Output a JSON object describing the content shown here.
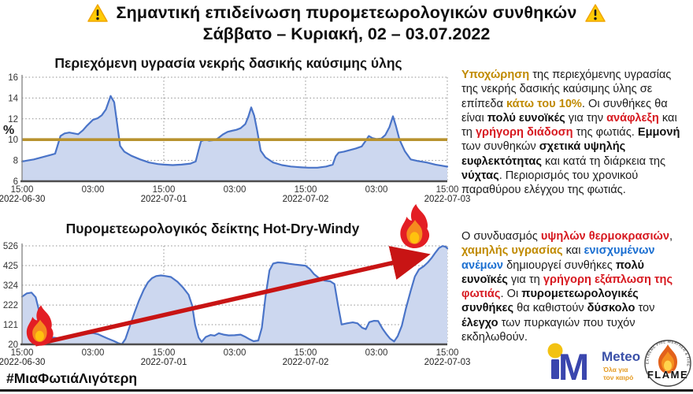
{
  "header": {
    "warning_icon": "warning-triangle",
    "title_line1": "Σημαντική επιδείνωση πυρομετεωρολογικών συνθηκών",
    "title_line2": "Σάββατο – Κυριακή, 02 – 03.07.2022"
  },
  "chart_data": [
    {
      "type": "area",
      "title": "Περιεχόμενη υγρασία νεκρής δασικής καύσιμης ύλης",
      "ylabel": "%",
      "ylim": [
        6,
        16
      ],
      "yticks": [
        6,
        8,
        10,
        12,
        14,
        16
      ],
      "xlim": [
        0,
        72
      ],
      "x_unit": "hours since 2022-06-30 15:00",
      "xticks": [
        {
          "t": 0,
          "time": "15:00",
          "date": "2022-06-30"
        },
        {
          "t": 12,
          "time": "03:00"
        },
        {
          "t": 24,
          "time": "15:00",
          "date": "2022-07-01"
        },
        {
          "t": 36,
          "time": "03:00"
        },
        {
          "t": 48,
          "time": "15:00",
          "date": "2022-07-02"
        },
        {
          "t": 60,
          "time": "03:00"
        },
        {
          "t": 72,
          "time": "15:00",
          "date": "2022-07-03"
        }
      ],
      "day_gridlines_t": [
        24,
        48,
        72
      ],
      "grid": true,
      "legend": "none",
      "threshold": {
        "value": 10,
        "color": "#b8922e"
      },
      "points": [
        [
          0,
          7.9
        ],
        [
          1,
          8.0
        ],
        [
          2,
          8.1
        ],
        [
          3,
          8.25
        ],
        [
          4,
          8.4
        ],
        [
          5,
          8.55
        ],
        [
          5.6,
          8.65
        ],
        [
          6.1,
          9.6
        ],
        [
          6.5,
          10.35
        ],
        [
          7.2,
          10.6
        ],
        [
          8,
          10.68
        ],
        [
          8.8,
          10.6
        ],
        [
          9.5,
          10.52
        ],
        [
          10.3,
          10.9
        ],
        [
          11,
          11.35
        ],
        [
          12,
          11.9
        ],
        [
          12.8,
          12.05
        ],
        [
          13.5,
          12.35
        ],
        [
          14.2,
          12.9
        ],
        [
          15,
          14.2
        ],
        [
          15.6,
          13.6
        ],
        [
          16.1,
          11.5
        ],
        [
          16.6,
          9.4
        ],
        [
          17.3,
          8.85
        ],
        [
          18.5,
          8.45
        ],
        [
          20,
          8.1
        ],
        [
          21.5,
          7.8
        ],
        [
          23,
          7.65
        ],
        [
          24,
          7.6
        ],
        [
          25.5,
          7.55
        ],
        [
          27,
          7.6
        ],
        [
          28.5,
          7.7
        ],
        [
          29.4,
          7.9
        ],
        [
          29.9,
          9.0
        ],
        [
          30.3,
          9.85
        ],
        [
          31,
          10.0
        ],
        [
          31.7,
          9.9
        ],
        [
          32.4,
          9.95
        ],
        [
          33.1,
          10.1
        ],
        [
          34,
          10.5
        ],
        [
          34.8,
          10.75
        ],
        [
          35.5,
          10.85
        ],
        [
          36.3,
          10.95
        ],
        [
          37,
          11.1
        ],
        [
          37.8,
          11.5
        ],
        [
          38.3,
          12.2
        ],
        [
          38.8,
          13.1
        ],
        [
          39.3,
          12.3
        ],
        [
          39.8,
          10.9
        ],
        [
          40.4,
          8.95
        ],
        [
          41.2,
          8.3
        ],
        [
          42.5,
          7.8
        ],
        [
          44,
          7.55
        ],
        [
          45.5,
          7.42
        ],
        [
          47,
          7.35
        ],
        [
          48.5,
          7.3
        ],
        [
          50,
          7.3
        ],
        [
          51.5,
          7.42
        ],
        [
          52.6,
          7.6
        ],
        [
          53.1,
          8.4
        ],
        [
          53.6,
          8.75
        ],
        [
          54.5,
          8.85
        ],
        [
          55.5,
          9.0
        ],
        [
          56.5,
          9.15
        ],
        [
          57.5,
          9.35
        ],
        [
          58.2,
          9.9
        ],
        [
          58.7,
          10.35
        ],
        [
          59.3,
          10.15
        ],
        [
          60,
          10.05
        ],
        [
          60.8,
          10.1
        ],
        [
          61.5,
          10.45
        ],
        [
          62.2,
          11.2
        ],
        [
          62.8,
          12.25
        ],
        [
          63.3,
          11.3
        ],
        [
          63.9,
          10.0
        ],
        [
          64.8,
          8.9
        ],
        [
          65.8,
          8.1
        ],
        [
          67,
          7.95
        ],
        [
          68.5,
          7.8
        ],
        [
          70,
          7.6
        ],
        [
          71,
          7.5
        ],
        [
          72,
          7.4
        ]
      ]
    },
    {
      "type": "area",
      "title": "Πυρομετεωρολογικός δείκτης Hot-Dry-Windy",
      "ylabel": "",
      "ylim": [
        20,
        526
      ],
      "yticks": [
        20,
        121,
        222,
        324,
        425,
        526
      ],
      "xlim": [
        0,
        72
      ],
      "x_unit": "hours since 2022-06-30 15:00",
      "xticks": [
        {
          "t": 0,
          "time": "15:00",
          "date": "2022-06-30"
        },
        {
          "t": 12,
          "time": "03:00"
        },
        {
          "t": 24,
          "time": "15:00",
          "date": "2022-07-01"
        },
        {
          "t": 36,
          "time": "03:00"
        },
        {
          "t": 48,
          "time": "15:00",
          "date": "2022-07-02"
        },
        {
          "t": 60,
          "time": "03:00"
        },
        {
          "t": 72,
          "time": "15:00",
          "date": "2022-07-03"
        }
      ],
      "day_gridlines_t": [
        24,
        48,
        72
      ],
      "grid": true,
      "legend": "none",
      "points": [
        [
          0,
          265
        ],
        [
          0.8,
          282
        ],
        [
          1.6,
          286
        ],
        [
          2.3,
          262
        ],
        [
          2.9,
          190
        ],
        [
          3.6,
          110
        ],
        [
          4.4,
          66
        ],
        [
          5.2,
          55
        ],
        [
          6,
          52
        ],
        [
          7,
          57
        ],
        [
          8,
          64
        ],
        [
          9,
          69
        ],
        [
          10,
          72
        ],
        [
          11,
          75
        ],
        [
          12,
          78
        ],
        [
          12.8,
          73
        ],
        [
          13.6,
          62
        ],
        [
          14.5,
          50
        ],
        [
          15.5,
          38
        ],
        [
          16.3,
          26
        ],
        [
          16.9,
          21
        ],
        [
          17.5,
          48
        ],
        [
          18.2,
          110
        ],
        [
          19,
          180
        ],
        [
          19.8,
          245
        ],
        [
          20.6,
          300
        ],
        [
          21.3,
          338
        ],
        [
          22,
          360
        ],
        [
          22.7,
          371
        ],
        [
          23.5,
          374
        ],
        [
          24.3,
          371
        ],
        [
          25.2,
          366
        ],
        [
          26.3,
          342
        ],
        [
          27.3,
          310
        ],
        [
          28.2,
          275
        ],
        [
          28.8,
          220
        ],
        [
          29.3,
          120
        ],
        [
          29.9,
          55
        ],
        [
          30.4,
          33
        ],
        [
          31.1,
          58
        ],
        [
          31.9,
          68
        ],
        [
          32.6,
          65
        ],
        [
          33.3,
          77
        ],
        [
          34.1,
          70
        ],
        [
          35,
          66
        ],
        [
          36,
          67
        ],
        [
          37,
          70
        ],
        [
          37.7,
          60
        ],
        [
          38.4,
          48
        ],
        [
          39.2,
          36
        ],
        [
          40,
          40
        ],
        [
          40.6,
          105
        ],
        [
          41.2,
          260
        ],
        [
          41.9,
          400
        ],
        [
          42.5,
          435
        ],
        [
          43.3,
          441
        ],
        [
          44.2,
          439
        ],
        [
          45.2,
          434
        ],
        [
          46.2,
          430
        ],
        [
          47.2,
          427
        ],
        [
          48,
          424
        ],
        [
          48.7,
          408
        ],
        [
          49.4,
          382
        ],
        [
          50.2,
          362
        ],
        [
          51.2,
          348
        ],
        [
          52.2,
          344
        ],
        [
          52.9,
          330
        ],
        [
          53.5,
          220
        ],
        [
          54.1,
          122
        ],
        [
          55,
          128
        ],
        [
          56,
          133
        ],
        [
          56.8,
          128
        ],
        [
          57.6,
          105
        ],
        [
          58.2,
          98
        ],
        [
          58.8,
          134
        ],
        [
          59.6,
          141
        ],
        [
          60.3,
          140
        ],
        [
          61,
          102
        ],
        [
          61.7,
          72
        ],
        [
          62.3,
          50
        ],
        [
          63,
          35
        ],
        [
          63.6,
          62
        ],
        [
          64.3,
          115
        ],
        [
          65,
          205
        ],
        [
          65.8,
          295
        ],
        [
          66.5,
          368
        ],
        [
          67.2,
          405
        ],
        [
          68,
          421
        ],
        [
          68.7,
          441
        ],
        [
          69.4,
          466
        ],
        [
          70,
          492
        ],
        [
          70.6,
          515
        ],
        [
          71.2,
          525
        ],
        [
          71.7,
          521
        ],
        [
          72,
          513
        ]
      ]
    }
  ],
  "panels": {
    "fuel_moisture": {
      "runs": [
        {
          "text": "Υποχώρηση",
          "style": "gold-bold"
        },
        {
          "text": " της περιεχόμενης υγρασίας της νεκρής δασικής καύσιμης ύλης σε επίπεδα ",
          "style": "normal"
        },
        {
          "text": "κάτω του 10%",
          "style": "gold-bold"
        },
        {
          "text": ". Οι συνθήκες θα είναι ",
          "style": "normal"
        },
        {
          "text": "πολύ ευνοϊκές",
          "style": "bold"
        },
        {
          "text": " για την ",
          "style": "normal"
        },
        {
          "text": "ανάφλεξη",
          "style": "red-bold"
        },
        {
          "text": " και τη ",
          "style": "normal"
        },
        {
          "text": "γρήγορη διάδοση",
          "style": "red-bold"
        },
        {
          "text": " της φωτιάς. ",
          "style": "normal"
        },
        {
          "text": "Εμμονή",
          "style": "bold"
        },
        {
          "text": " των συνθηκών ",
          "style": "normal"
        },
        {
          "text": "σχετικά υψηλής ευφλεκτότητας",
          "style": "bold"
        },
        {
          "text": " και κατά τη διάρκεια της ",
          "style": "normal"
        },
        {
          "text": "νύχτας",
          "style": "bold"
        },
        {
          "text": ". Περιορισμός του χρονικού παραθύρου ελέγχου της φωτιάς.",
          "style": "normal"
        }
      ]
    },
    "hdw": {
      "runs": [
        {
          "text": "Ο συνδυασμός ",
          "style": "normal"
        },
        {
          "text": "υψηλών θερμοκρασιών",
          "style": "red-bold"
        },
        {
          "text": ", ",
          "style": "normal"
        },
        {
          "text": "χαμηλής υγρασίας",
          "style": "gold-bold"
        },
        {
          "text": " και ",
          "style": "normal"
        },
        {
          "text": "ενισχυμένων ανέμων",
          "style": "blue-bold"
        },
        {
          "text": " δημιουργεί συνθήκες ",
          "style": "normal"
        },
        {
          "text": "πολύ ευνοϊκές",
          "style": "bold"
        },
        {
          "text": " για τη ",
          "style": "normal"
        },
        {
          "text": "γρήγορη εξάπλωση της φωτιάς",
          "style": "red-bold"
        },
        {
          "text": ". Οι ",
          "style": "normal"
        },
        {
          "text": "πυρομετεωρολογικές συνθήκες",
          "style": "bold"
        },
        {
          "text": " θα καθιστούν ",
          "style": "normal"
        },
        {
          "text": "δύσκολο",
          "style": "bold"
        },
        {
          "text": " τον ",
          "style": "normal"
        },
        {
          "text": "έλεγχο",
          "style": "bold"
        },
        {
          "text": " των πυρκαγιών που τυχόν εκδηλωθούν.",
          "style": "normal"
        }
      ]
    }
  },
  "footer": {
    "hashtag": "#ΜιαΦωτιάΛιγότερη",
    "meteo": {
      "letter": "M",
      "name": "Meteo",
      "tagline1": "Όλα για",
      "tagline2": "τον καιρό"
    },
    "flame": {
      "name": "FLAME",
      "ring_text": "EXTREME FIRE WEATHER & FIRE ANALYTICS"
    }
  },
  "colors": {
    "series_line": "#4a74c8",
    "series_fill": "#ccd7ef",
    "threshold": "#b8922e",
    "arrow": "#c81414",
    "accent_gold": "#c08a00",
    "accent_red": "#d71920",
    "accent_blue": "#1b6fd1"
  }
}
